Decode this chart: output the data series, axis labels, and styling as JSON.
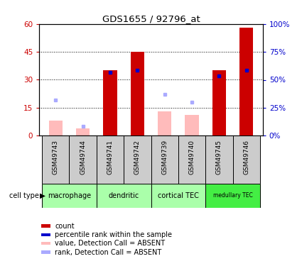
{
  "title": "GDS1655 / 92796_at",
  "samples": [
    "GSM49743",
    "GSM49744",
    "GSM49741",
    "GSM49742",
    "GSM49739",
    "GSM49740",
    "GSM49745",
    "GSM49746"
  ],
  "cell_types": [
    "macrophage",
    "dendritic",
    "cortical TEC",
    "medullary TEC"
  ],
  "cell_type_spans": [
    2,
    2,
    2,
    2
  ],
  "red_values": [
    0,
    0,
    35,
    45,
    0,
    0,
    35,
    58
  ],
  "pink_values": [
    8,
    4,
    0,
    0,
    13,
    11,
    0,
    0
  ],
  "blue_squares": [
    0,
    0,
    34,
    35,
    0,
    0,
    32,
    35
  ],
  "blue_square_absent": [
    19,
    5,
    0,
    0,
    22,
    18,
    0,
    0
  ],
  "ylim_left": [
    0,
    60
  ],
  "ylim_right": [
    0,
    100
  ],
  "yticks_left": [
    0,
    15,
    30,
    45,
    60
  ],
  "yticks_right": [
    0,
    25,
    50,
    75,
    100
  ],
  "ytick_labels_left": [
    "0",
    "15",
    "30",
    "45",
    "60"
  ],
  "ytick_labels_right": [
    "0%",
    "25%",
    "50%",
    "75%",
    "100%"
  ],
  "bar_width": 0.5,
  "sample_bg_color": "#cccccc",
  "ct_colors": [
    "#aaffaa",
    "#aaffaa",
    "#aaffaa",
    "#44ee44"
  ],
  "legend_colors": [
    "#cc0000",
    "#0000cc",
    "#ffbbbb",
    "#aaaaff"
  ],
  "legend_labels": [
    "count",
    "percentile rank within the sample",
    "value, Detection Call = ABSENT",
    "rank, Detection Call = ABSENT"
  ]
}
